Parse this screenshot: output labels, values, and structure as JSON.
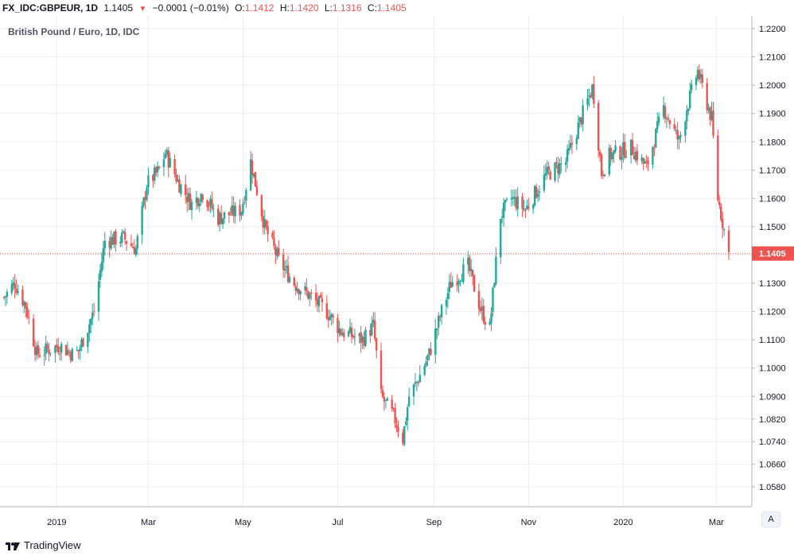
{
  "header": {
    "symbol": "FX_IDC:GBPEUR, 1D",
    "last": "1.1405",
    "arrow": "▼",
    "change": "−0.0001 (−0.01%)",
    "o_label": "O:",
    "o_value": "1.1412",
    "h_label": "H:",
    "h_value": "1.1420",
    "l_label": "L:",
    "l_value": "1.1316",
    "c_label": "C:",
    "c_value": "1.1405"
  },
  "footer": {
    "brand": "TradingView",
    "auto_button": "A"
  },
  "colors": {
    "up": "#26a69a",
    "down": "#ef5350",
    "grid": "#e9ecf1",
    "price_line": "#ef5350",
    "axis_text": "#131722"
  },
  "chart_data": {
    "type": "candlestick",
    "title": "British Pound / Euro, 1D, IDC",
    "ylim": [
      1.051,
      1.2245
    ],
    "y_ticks": [
      "1.2200",
      "1.2100",
      "1.2000",
      "1.1900",
      "1.1800",
      "1.1700",
      "1.1600",
      "1.1500",
      "1.1400",
      "1.1300",
      "1.1200",
      "1.1100",
      "1.1000",
      "1.0900",
      "1.0820",
      "1.0740",
      "1.0660",
      "1.0580"
    ],
    "x_ticks": [
      "2019",
      "Mar",
      "May",
      "Jul",
      "Sep",
      "Nov",
      "2020",
      "Mar"
    ],
    "last_price_label": "1.1405",
    "last_price": 1.1405,
    "date_range": [
      "2018-11-28",
      "2020-03-09"
    ],
    "anchor_dates": [
      "2018-11-28",
      "2018-12-05",
      "2018-12-12",
      "2018-12-19",
      "2019-01-03",
      "2019-01-11",
      "2019-01-15",
      "2019-01-25",
      "2019-02-01",
      "2019-02-13",
      "2019-02-21",
      "2019-02-28",
      "2019-03-08",
      "2019-03-12",
      "2019-03-21",
      "2019-03-29",
      "2019-04-05",
      "2019-04-15",
      "2019-04-30",
      "2019-05-06",
      "2019-05-15",
      "2019-05-24",
      "2019-06-03",
      "2019-06-12",
      "2019-06-24",
      "2019-07-03",
      "2019-07-17",
      "2019-07-24",
      "2019-07-29",
      "2019-08-06",
      "2019-08-12",
      "2019-08-16",
      "2019-08-21",
      "2019-08-29",
      "2019-09-06",
      "2019-09-12",
      "2019-09-23",
      "2019-10-01",
      "2019-10-07",
      "2019-10-10",
      "2019-10-14",
      "2019-10-21",
      "2019-10-30",
      "2019-11-12",
      "2019-11-25",
      "2019-12-06",
      "2019-12-12",
      "2019-12-13",
      "2019-12-18",
      "2019-12-23",
      "2020-01-06",
      "2020-01-16",
      "2020-01-27",
      "2020-02-06",
      "2020-02-11",
      "2020-02-18",
      "2020-02-20",
      "2020-02-27",
      "2020-03-02",
      "2020-03-09"
    ],
    "anchor_closes": [
      1.125,
      1.13,
      1.122,
      1.105,
      1.108,
      1.105,
      1.106,
      1.12,
      1.145,
      1.146,
      1.142,
      1.165,
      1.17,
      1.176,
      1.165,
      1.158,
      1.162,
      1.153,
      1.156,
      1.173,
      1.15,
      1.138,
      1.13,
      1.126,
      1.12,
      1.113,
      1.11,
      1.115,
      1.09,
      1.083,
      1.075,
      1.09,
      1.095,
      1.105,
      1.12,
      1.13,
      1.136,
      1.121,
      1.114,
      1.132,
      1.154,
      1.16,
      1.156,
      1.168,
      1.173,
      1.19,
      1.199,
      1.196,
      1.169,
      1.175,
      1.178,
      1.171,
      1.192,
      1.18,
      1.192,
      1.205,
      1.201,
      1.188,
      1.16,
      1.1405
    ],
    "intraday_range": [
      1.064,
      1.208
    ]
  }
}
